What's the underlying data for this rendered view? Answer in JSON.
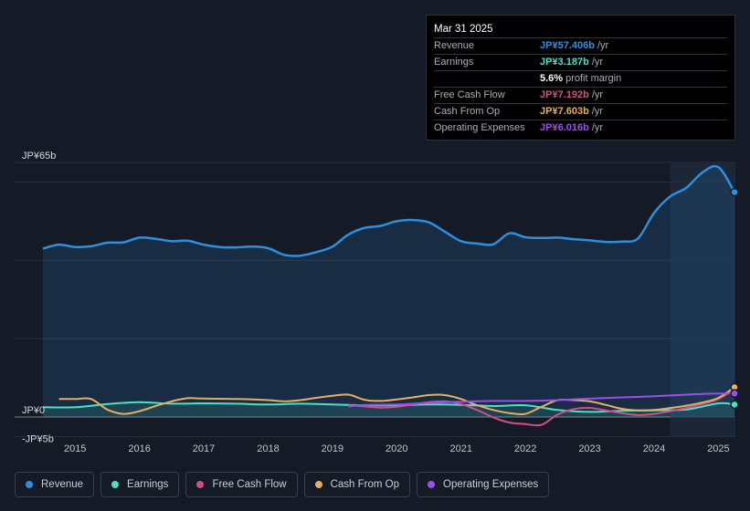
{
  "chart_data": {
    "type": "line",
    "title": "",
    "y_axis_labels": [
      "JP¥65b",
      "JP¥0",
      "-JP¥5b"
    ],
    "ylim": [
      -5,
      65
    ],
    "xlim": [
      2014.5,
      2025.25
    ],
    "x_tick_labels": [
      "2015",
      "2016",
      "2017",
      "2018",
      "2019",
      "2020",
      "2021",
      "2022",
      "2023",
      "2024",
      "2025"
    ],
    "x_tick_values": [
      2015,
      2016,
      2017,
      2018,
      2019,
      2020,
      2021,
      2022,
      2023,
      2024,
      2025
    ],
    "highlight_start": 2024.25,
    "series": [
      {
        "name": "Revenue",
        "color": "#2d8fe0",
        "fill": true,
        "x": [
          2014.5,
          2014.75,
          2015.0,
          2015.25,
          2015.5,
          2015.75,
          2016.0,
          2016.25,
          2016.5,
          2016.75,
          2017.0,
          2017.25,
          2017.5,
          2017.75,
          2018.0,
          2018.25,
          2018.5,
          2018.75,
          2019.0,
          2019.25,
          2019.5,
          2019.75,
          2020.0,
          2020.25,
          2020.5,
          2020.75,
          2021.0,
          2021.25,
          2021.5,
          2021.75,
          2022.0,
          2022.25,
          2022.5,
          2022.75,
          2023.0,
          2023.25,
          2023.5,
          2023.75,
          2024.0,
          2024.25,
          2024.5,
          2024.75,
          2025.0,
          2025.25
        ],
        "values": [
          43.0,
          44.0,
          43.4,
          43.6,
          44.5,
          44.6,
          45.8,
          45.5,
          44.9,
          45.0,
          44.0,
          43.4,
          43.3,
          43.5,
          43.1,
          41.4,
          41.2,
          42.1,
          43.5,
          46.6,
          48.3,
          48.8,
          50.0,
          50.3,
          49.7,
          47.3,
          44.9,
          44.3,
          44.1,
          46.9,
          45.9,
          45.7,
          45.8,
          45.4,
          45.1,
          44.7,
          44.8,
          45.6,
          52.1,
          56.3,
          58.5,
          62.4,
          63.8,
          57.4
        ]
      },
      {
        "name": "Earnings",
        "color": "#4ee0c4",
        "fill": true,
        "x": [
          2014.5,
          2015.0,
          2015.5,
          2016.0,
          2016.5,
          2017.0,
          2017.5,
          2018.0,
          2018.5,
          2019.0,
          2019.5,
          2020.0,
          2020.5,
          2021.0,
          2021.5,
          2022.0,
          2022.5,
          2023.0,
          2023.5,
          2024.0,
          2024.5,
          2025.0,
          2025.25
        ],
        "values": [
          2.5,
          2.5,
          3.3,
          3.8,
          3.4,
          3.5,
          3.4,
          3.2,
          3.4,
          3.2,
          3.0,
          3.0,
          3.2,
          3.1,
          2.8,
          3.0,
          1.8,
          1.3,
          1.6,
          1.7,
          1.9,
          3.5,
          3.187
        ]
      },
      {
        "name": "Free Cash Flow",
        "color": "#d14f86",
        "fill": false,
        "x": [
          2019.25,
          2019.5,
          2019.75,
          2020.0,
          2020.25,
          2020.5,
          2020.75,
          2021.0,
          2021.25,
          2021.5,
          2021.75,
          2022.0,
          2022.25,
          2022.5,
          2022.75,
          2023.0,
          2023.25,
          2023.5,
          2023.75,
          2024.0,
          2024.25,
          2024.5,
          2024.75,
          2025.0,
          2025.25
        ],
        "values": [
          3.0,
          2.7,
          2.4,
          2.6,
          3.2,
          3.8,
          4.0,
          3.3,
          1.8,
          -0.1,
          -1.4,
          -1.8,
          -2.0,
          0.6,
          2.0,
          2.3,
          1.7,
          1.0,
          0.5,
          0.8,
          1.5,
          2.3,
          3.3,
          4.6,
          7.192
        ]
      },
      {
        "name": "Cash From Op",
        "color": "#e8ae5f",
        "fill": false,
        "x": [
          2014.75,
          2015.0,
          2015.25,
          2015.5,
          2015.75,
          2016.0,
          2016.25,
          2016.5,
          2016.75,
          2017.0,
          2017.5,
          2018.0,
          2018.25,
          2018.5,
          2018.75,
          2019.0,
          2019.25,
          2019.5,
          2019.75,
          2020.0,
          2020.25,
          2020.5,
          2020.75,
          2021.0,
          2021.25,
          2021.5,
          2021.75,
          2022.0,
          2022.25,
          2022.5,
          2022.75,
          2023.0,
          2023.25,
          2023.5,
          2023.75,
          2024.0,
          2024.25,
          2024.5,
          2024.75,
          2025.0,
          2025.25
        ],
        "values": [
          4.6,
          4.6,
          4.6,
          1.9,
          0.8,
          1.5,
          2.8,
          4.0,
          4.8,
          4.7,
          4.6,
          4.3,
          4.0,
          4.3,
          4.9,
          5.4,
          5.7,
          4.4,
          4.1,
          4.5,
          5.0,
          5.6,
          5.6,
          4.6,
          3.0,
          1.8,
          1.0,
          0.8,
          2.6,
          4.3,
          4.3,
          4.0,
          3.1,
          2.1,
          1.7,
          1.8,
          2.3,
          2.9,
          3.7,
          4.9,
          7.603
        ]
      },
      {
        "name": "Operating Expenses",
        "color": "#9c4ee8",
        "fill": false,
        "x": [
          2019.25,
          2019.5,
          2020.0,
          2020.5,
          2021.0,
          2021.5,
          2022.0,
          2022.5,
          2023.0,
          2023.5,
          2024.0,
          2024.25,
          2024.5,
          2024.75,
          2025.0,
          2025.25
        ],
        "values": [
          2.7,
          3.1,
          3.2,
          3.6,
          3.9,
          4.1,
          4.1,
          4.3,
          4.7,
          5.0,
          5.3,
          5.5,
          5.7,
          5.9,
          6.0,
          6.016
        ]
      }
    ]
  },
  "tooltip": {
    "date": "Mar 31 2025",
    "rows": [
      {
        "label": "Revenue",
        "value": "JP¥57.406b",
        "unit": "/yr",
        "color": "#2d8fe0"
      },
      {
        "label": "Earnings",
        "value": "JP¥3.187b",
        "unit": "/yr",
        "color": "#4ee0c4"
      },
      {
        "label": "",
        "value": "5.6%",
        "unit": "profit margin",
        "color": "#ffffff"
      },
      {
        "label": "Free Cash Flow",
        "value": "JP¥7.192b",
        "unit": "/yr",
        "color": "#d14f86"
      },
      {
        "label": "Cash From Op",
        "value": "JP¥7.603b",
        "unit": "/yr",
        "color": "#e8ae5f"
      },
      {
        "label": "Operating Expenses",
        "value": "JP¥6.016b",
        "unit": "/yr",
        "color": "#9c4ee8"
      }
    ]
  },
  "legend": [
    {
      "label": "Revenue",
      "color": "#2d8fe0"
    },
    {
      "label": "Earnings",
      "color": "#4ee0c4"
    },
    {
      "label": "Free Cash Flow",
      "color": "#d14f86"
    },
    {
      "label": "Cash From Op",
      "color": "#e8ae5f"
    },
    {
      "label": "Operating Expenses",
      "color": "#9c4ee8"
    }
  ]
}
